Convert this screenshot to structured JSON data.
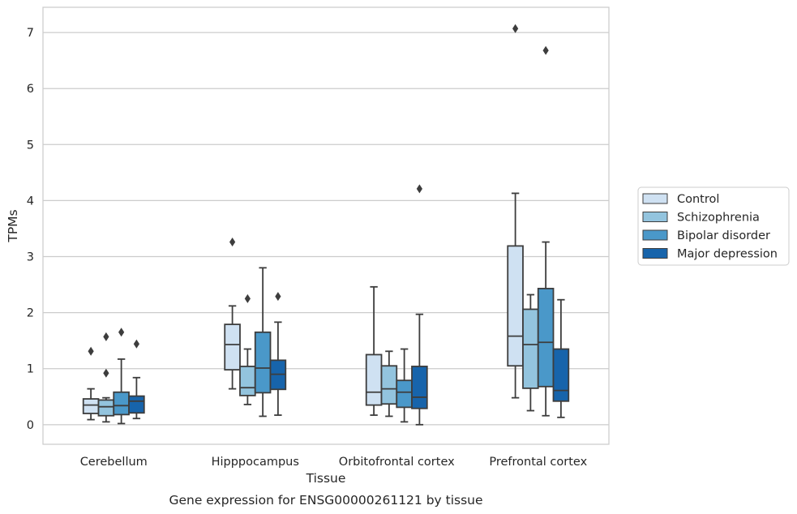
{
  "chart_data": {
    "type": "box",
    "caption": "Gene expression for ENSG00000261121 by tissue",
    "xlabel": "Tissue",
    "ylabel": "TPMs",
    "ylim": [
      -0.35,
      7.45
    ],
    "yticks": [
      0,
      1,
      2,
      3,
      4,
      5,
      6,
      7
    ],
    "grid": "horizontal",
    "legend_position": "right",
    "categories": [
      "Cerebellum",
      "Hipppocampus",
      "Orbitofrontal cortex",
      "Prefrontal cortex"
    ],
    "series": [
      {
        "name": "Control",
        "color": "#cfe1f2",
        "boxes": [
          {
            "whisker_low": 0.09,
            "q1": 0.2,
            "median": 0.35,
            "q3": 0.46,
            "whisker_high": 0.64,
            "outliers": [
              1.31
            ]
          },
          {
            "whisker_low": 0.64,
            "q1": 0.98,
            "median": 1.43,
            "q3": 1.79,
            "whisker_high": 2.12,
            "outliers": [
              3.26
            ]
          },
          {
            "whisker_low": 0.17,
            "q1": 0.35,
            "median": 0.58,
            "q3": 1.25,
            "whisker_high": 2.46,
            "outliers": []
          },
          {
            "whisker_low": 0.48,
            "q1": 1.05,
            "median": 1.58,
            "q3": 3.19,
            "whisker_high": 4.13,
            "outliers": [
              7.07
            ]
          }
        ]
      },
      {
        "name": "Schizophrenia",
        "color": "#93c4de",
        "boxes": [
          {
            "whisker_low": 0.05,
            "q1": 0.16,
            "median": 0.32,
            "q3": 0.44,
            "whisker_high": 0.48,
            "outliers": [
              0.92,
              1.57
            ]
          },
          {
            "whisker_low": 0.36,
            "q1": 0.52,
            "median": 0.66,
            "q3": 1.04,
            "whisker_high": 1.35,
            "outliers": [
              2.25
            ]
          },
          {
            "whisker_low": 0.15,
            "q1": 0.37,
            "median": 0.64,
            "q3": 1.05,
            "whisker_high": 1.31,
            "outliers": []
          },
          {
            "whisker_low": 0.25,
            "q1": 0.65,
            "median": 1.43,
            "q3": 2.06,
            "whisker_high": 2.32,
            "outliers": []
          }
        ]
      },
      {
        "name": "Bipolar disorder",
        "color": "#4a98c9",
        "boxes": [
          {
            "whisker_low": 0.02,
            "q1": 0.18,
            "median": 0.34,
            "q3": 0.58,
            "whisker_high": 1.17,
            "outliers": [
              1.65
            ]
          },
          {
            "whisker_low": 0.15,
            "q1": 0.57,
            "median": 1.01,
            "q3": 1.65,
            "whisker_high": 2.8,
            "outliers": []
          },
          {
            "whisker_low": 0.05,
            "q1": 0.31,
            "median": 0.58,
            "q3": 0.79,
            "whisker_high": 1.35,
            "outliers": []
          },
          {
            "whisker_low": 0.16,
            "q1": 0.68,
            "median": 1.47,
            "q3": 2.43,
            "whisker_high": 3.26,
            "outliers": [
              6.68
            ]
          }
        ]
      },
      {
        "name": "Major depression",
        "color": "#1764ab",
        "boxes": [
          {
            "whisker_low": 0.11,
            "q1": 0.21,
            "median": 0.42,
            "q3": 0.51,
            "whisker_high": 0.84,
            "outliers": [
              1.44
            ]
          },
          {
            "whisker_low": 0.17,
            "q1": 0.63,
            "median": 0.9,
            "q3": 1.15,
            "whisker_high": 1.83,
            "outliers": [
              2.29
            ]
          },
          {
            "whisker_low": 0.0,
            "q1": 0.29,
            "median": 0.49,
            "q3": 1.04,
            "whisker_high": 1.97,
            "outliers": [
              4.21
            ]
          },
          {
            "whisker_low": 0.13,
            "q1": 0.42,
            "median": 0.61,
            "q3": 1.35,
            "whisker_high": 2.23,
            "outliers": []
          }
        ]
      }
    ]
  }
}
